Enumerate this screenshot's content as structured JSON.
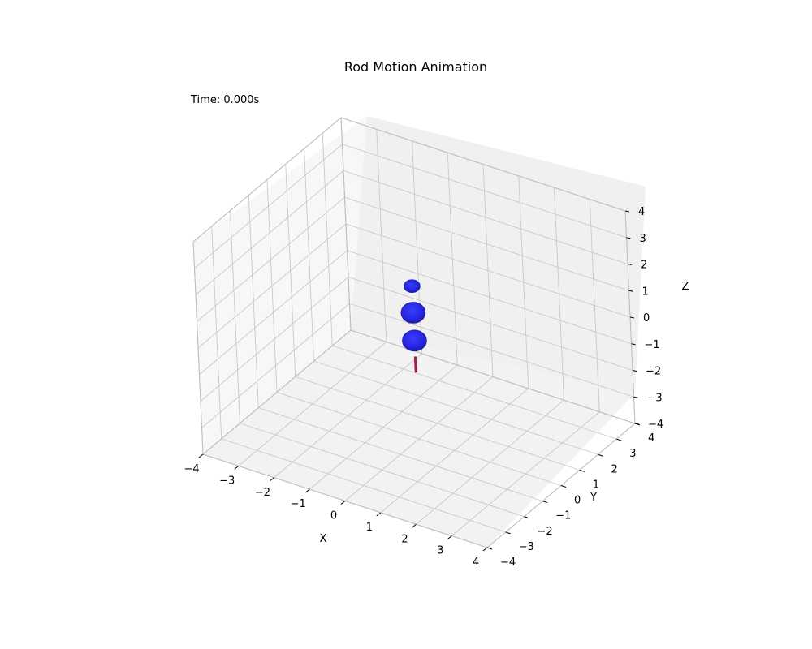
{
  "chart_data": {
    "type": "scatter",
    "projection": "3d",
    "title": "Rod Motion Animation",
    "annotation": "Time: 0.000s",
    "xlabel": "X",
    "ylabel": "Y",
    "zlabel": "Z",
    "xlim": [
      -4,
      4
    ],
    "ylim": [
      -4,
      4
    ],
    "zlim": [
      -4,
      4
    ],
    "x_ticks": [
      "−4",
      "−3",
      "−2",
      "−1",
      "0",
      "1",
      "2",
      "3",
      "4"
    ],
    "y_ticks": [
      "−4",
      "−3",
      "−2",
      "−1",
      "0",
      "1",
      "2",
      "3",
      "4"
    ],
    "z_ticks": [
      "−4",
      "−3",
      "−2",
      "−1",
      "0",
      "1",
      "2",
      "3",
      "4"
    ],
    "grid": true,
    "spheres": [
      {
        "x": 0,
        "y": 0,
        "z": -0.3,
        "color": "#2323e6"
      },
      {
        "x": 0,
        "y": 0,
        "z": 0.75,
        "color": "#2323e6"
      },
      {
        "x": 0,
        "y": 0,
        "z": 1.75,
        "color": "#2323e6"
      }
    ],
    "rod": {
      "start": {
        "x": 0,
        "y": 0,
        "z": -1.5
      },
      "end": {
        "x": 0,
        "y": 0,
        "z": -0.9
      },
      "color": "#a31d4f"
    }
  }
}
